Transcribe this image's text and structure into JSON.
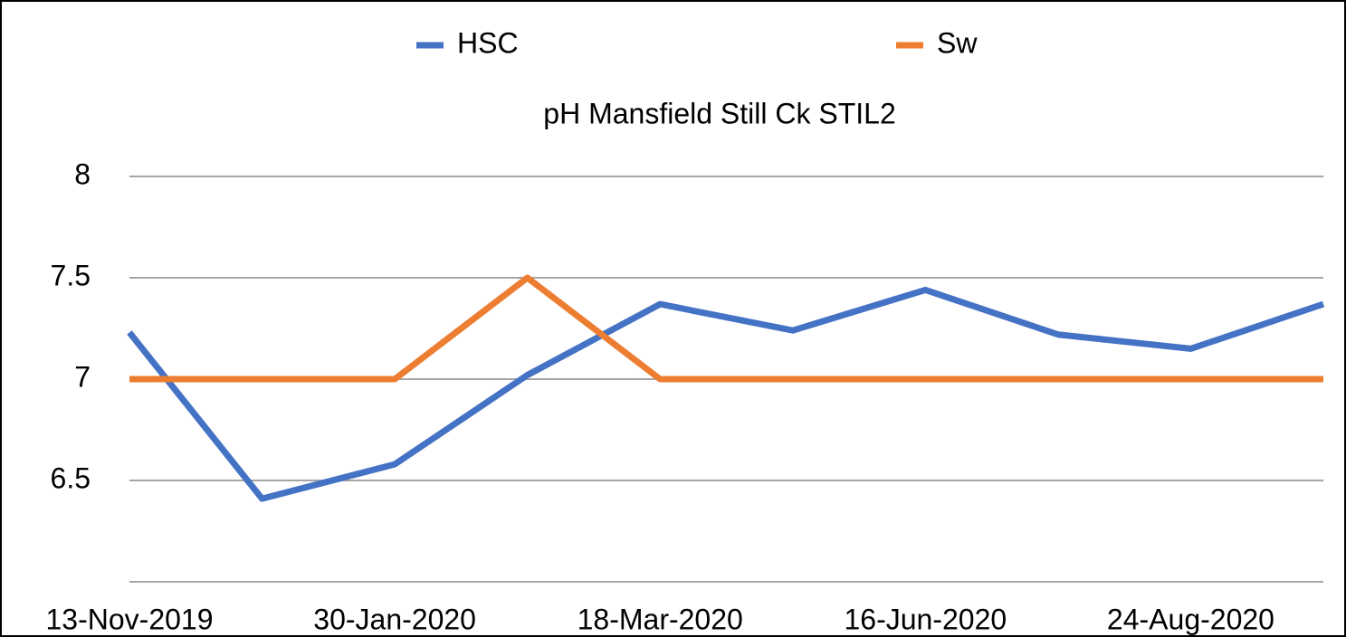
{
  "chart_data": {
    "type": "line",
    "title": "pH Mansfield Still Ck STIL2",
    "categories": [
      "13-Nov-2019",
      null,
      "30-Jan-2020",
      null,
      "18-Mar-2020",
      null,
      "16-Jun-2020",
      null,
      "24-Aug-2020",
      null
    ],
    "series": [
      {
        "name": "HSC",
        "color": "#4472c4",
        "values": [
          7.23,
          6.41,
          6.58,
          7.02,
          7.37,
          7.24,
          7.44,
          7.22,
          7.15,
          7.37
        ]
      },
      {
        "name": "Sw",
        "color": "#ed7d31",
        "values": [
          7,
          7,
          7,
          7.5,
          7,
          7,
          7,
          7,
          7,
          7
        ]
      }
    ],
    "ylim": [
      6,
      8
    ],
    "yticks": [
      6.5,
      7,
      7.5,
      8
    ],
    "grid": true,
    "legend": "top"
  }
}
